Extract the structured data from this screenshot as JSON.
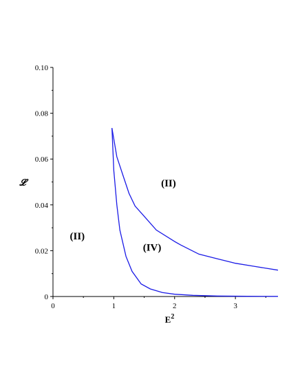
{
  "chart_data": {
    "type": "line",
    "xlabel": "E",
    "xlabel_superscript": "2",
    "ylabel": "𝓛",
    "xlim": [
      0,
      3.7
    ],
    "ylim": [
      0,
      0.1
    ],
    "x_ticks": [
      "0",
      "1",
      "2",
      "3"
    ],
    "x_tick_values": [
      0,
      1,
      2,
      3
    ],
    "y_ticks": [
      "0",
      "0.02",
      "0.04",
      "0.06",
      "0.08",
      "0.10"
    ],
    "y_tick_values": [
      0,
      0.02,
      0.04,
      0.06,
      0.08,
      0.1
    ],
    "grid": false,
    "series_color": "#1a1ae6",
    "series": [
      {
        "points": [
          [
            0.97,
            0.0735
          ],
          [
            1.05,
            0.061
          ],
          [
            1.15,
            0.053
          ],
          [
            1.25,
            0.045
          ],
          [
            1.35,
            0.0395
          ],
          [
            1.5,
            0.035
          ],
          [
            1.7,
            0.029
          ],
          [
            2.0,
            0.024
          ],
          [
            2.1,
            0.0225
          ],
          [
            2.4,
            0.0185
          ],
          [
            2.7,
            0.0165
          ],
          [
            3.0,
            0.0145
          ],
          [
            3.3,
            0.0132
          ],
          [
            3.7,
            0.0115
          ]
        ]
      },
      {
        "points": [
          [
            0.97,
            0.0735
          ],
          [
            1.0,
            0.055
          ],
          [
            1.05,
            0.04
          ],
          [
            1.1,
            0.029
          ],
          [
            1.2,
            0.0175
          ],
          [
            1.3,
            0.011
          ],
          [
            1.45,
            0.0055
          ],
          [
            1.6,
            0.0033
          ],
          [
            1.8,
            0.0017
          ],
          [
            2.0,
            0.001
          ],
          [
            2.3,
            0.0005
          ],
          [
            2.7,
            0.0002
          ],
          [
            3.2,
            0.0001
          ],
          [
            3.7,
            5e-05
          ]
        ]
      }
    ],
    "annotations": [
      {
        "text": "(II)",
        "x": 1.9,
        "y": 0.048
      },
      {
        "text": "(II)",
        "x": 0.4,
        "y": 0.025
      },
      {
        "text": "(IV)",
        "x": 1.63,
        "y": 0.02
      }
    ]
  }
}
